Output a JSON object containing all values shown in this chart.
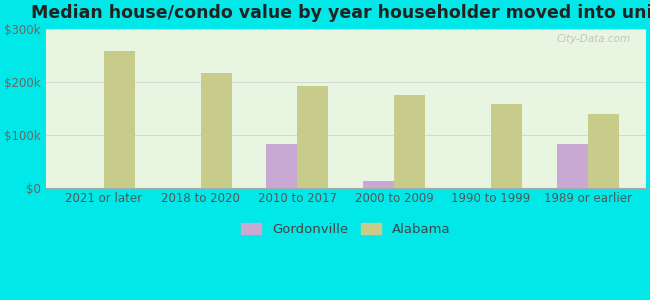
{
  "title": "Median house/condo value by year householder moved into unit",
  "categories": [
    "2021 or later",
    "2018 to 2020",
    "2010 to 2017",
    "2000 to 2009",
    "1990 to 1999",
    "1989 or earlier"
  ],
  "gordonville": [
    0,
    0,
    82000,
    12000,
    0,
    83000
  ],
  "alabama": [
    258000,
    218000,
    193000,
    175000,
    158000,
    140000
  ],
  "gordonville_color": "#c9a8d4",
  "alabama_color": "#c8cc8a",
  "bg_color": "#00e8e8",
  "plot_bg": "#e8f5e0",
  "ylim": [
    0,
    300000
  ],
  "yticks": [
    0,
    100000,
    200000,
    300000
  ],
  "ytick_labels": [
    "$0",
    "$100k",
    "$200k",
    "$300k"
  ],
  "title_fontsize": 12.5,
  "tick_fontsize": 8.5,
  "legend_fontsize": 9.5
}
